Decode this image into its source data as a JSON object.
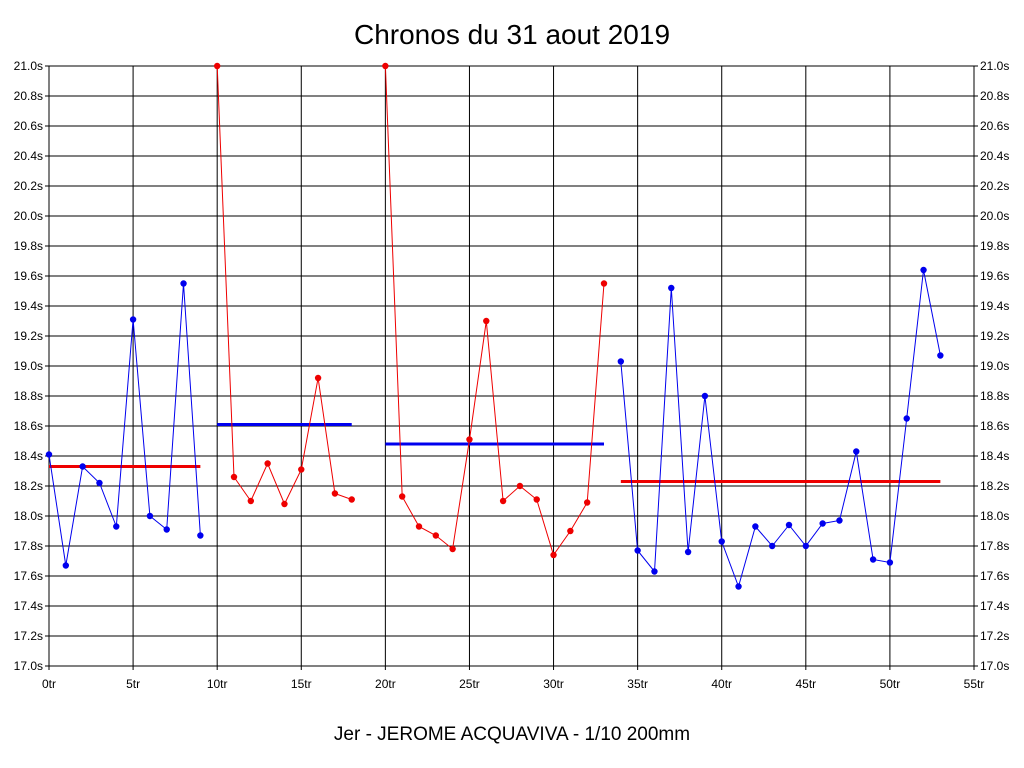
{
  "chart_data": {
    "type": "line",
    "title": "Chronos du 31 aout 2019",
    "footer": "Jer - JEROME ACQUAVIVA - 1/10 200mm",
    "grid": true,
    "xlim": [
      0,
      55
    ],
    "ylim": [
      17.0,
      21.0
    ],
    "x_ticks": [
      {
        "value": 0,
        "label": "0tr"
      },
      {
        "value": 5,
        "label": "5tr"
      },
      {
        "value": 10,
        "label": "10tr"
      },
      {
        "value": 15,
        "label": "15tr"
      },
      {
        "value": 20,
        "label": "20tr"
      },
      {
        "value": 25,
        "label": "25tr"
      },
      {
        "value": 30,
        "label": "30tr"
      },
      {
        "value": 35,
        "label": "35tr"
      },
      {
        "value": 40,
        "label": "40tr"
      },
      {
        "value": 45,
        "label": "45tr"
      },
      {
        "value": 50,
        "label": "50tr"
      },
      {
        "value": 55,
        "label": "55tr"
      }
    ],
    "y_ticks": [
      {
        "value": 17.0,
        "label": "17.0s"
      },
      {
        "value": 17.2,
        "label": "17.2s"
      },
      {
        "value": 17.4,
        "label": "17.4s"
      },
      {
        "value": 17.6,
        "label": "17.6s"
      },
      {
        "value": 17.8,
        "label": "17.8s"
      },
      {
        "value": 18.0,
        "label": "18.0s"
      },
      {
        "value": 18.2,
        "label": "18.2s"
      },
      {
        "value": 18.4,
        "label": "18.4s"
      },
      {
        "value": 18.6,
        "label": "18.6s"
      },
      {
        "value": 18.8,
        "label": "18.8s"
      },
      {
        "value": 19.0,
        "label": "19.0s"
      },
      {
        "value": 19.2,
        "label": "19.2s"
      },
      {
        "value": 19.4,
        "label": "19.4s"
      },
      {
        "value": 19.6,
        "label": "19.6s"
      },
      {
        "value": 19.8,
        "label": "19.8s"
      },
      {
        "value": 20.0,
        "label": "20.0s"
      },
      {
        "value": 20.2,
        "label": "20.2s"
      },
      {
        "value": 20.4,
        "label": "20.4s"
      },
      {
        "value": 20.6,
        "label": "20.6s"
      },
      {
        "value": 20.8,
        "label": "20.8s"
      },
      {
        "value": 21.0,
        "label": "21.0s"
      }
    ],
    "series": [
      {
        "color": "#0000ee",
        "x": [
          0,
          1,
          2,
          3,
          4,
          5,
          6,
          7,
          8,
          9
        ],
        "y": [
          18.41,
          17.67,
          18.33,
          18.22,
          17.93,
          19.31,
          18.0,
          17.91,
          19.55,
          17.87
        ]
      },
      {
        "color": "#ee0000",
        "x": [
          10,
          11,
          12,
          13,
          14,
          15,
          16,
          17,
          18
        ],
        "y": [
          21.0,
          18.26,
          18.1,
          18.35,
          18.08,
          18.31,
          18.92,
          18.15,
          18.11
        ]
      },
      {
        "color": "#ee0000",
        "x": [
          20,
          21,
          22,
          23,
          24,
          25,
          26,
          27,
          28,
          29,
          30,
          31,
          32,
          33
        ],
        "y": [
          21.0,
          18.13,
          17.93,
          17.87,
          17.78,
          18.51,
          19.3,
          18.1,
          18.2,
          18.11,
          17.74,
          17.9,
          18.09,
          19.55
        ]
      },
      {
        "color": "#0000ee",
        "x": [
          34,
          35,
          36,
          37,
          38,
          39,
          40,
          41,
          42,
          43,
          44,
          45,
          46,
          47,
          48,
          49,
          50,
          51,
          52,
          53
        ],
        "y": [
          19.03,
          17.77,
          17.63,
          19.52,
          17.76,
          18.8,
          17.83,
          17.53,
          17.93,
          17.8,
          17.94,
          17.8,
          17.95,
          17.97,
          18.43,
          17.71,
          17.69,
          18.65,
          19.64,
          19.07
        ]
      }
    ],
    "averages": [
      {
        "color": "#ee0000",
        "x_start": 0,
        "x_end": 9,
        "value": 18.33
      },
      {
        "color": "#0000ee",
        "x_start": 10,
        "x_end": 18,
        "value": 18.61
      },
      {
        "color": "#0000ee",
        "x_start": 20,
        "x_end": 33,
        "value": 18.48
      },
      {
        "color": "#ee0000",
        "x_start": 34,
        "x_end": 53,
        "value": 18.23
      }
    ]
  }
}
